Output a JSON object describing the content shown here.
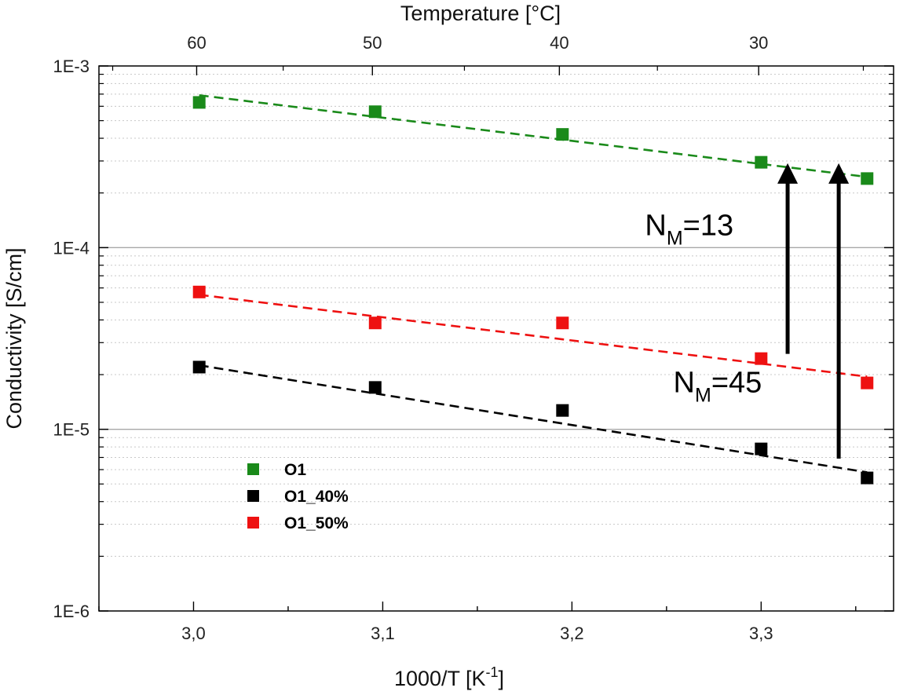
{
  "chart_data": {
    "type": "scatter",
    "xlabel_main": "1000/T [K",
    "xlabel_sup": "-1",
    "xlabel_end": "]",
    "ylabel": "Conductivity [S/cm]",
    "top_axis_label": "Temperature [°C]",
    "xlim": [
      2.95,
      3.37
    ],
    "ylim": [
      1e-06,
      0.001
    ],
    "yscale": "log",
    "x_ticks": [
      3.0,
      3.1,
      3.2,
      3.3
    ],
    "x_tick_labels": [
      "3,0",
      "3,1",
      "3,2",
      "3,3"
    ],
    "y_ticks": [
      1e-06,
      1e-05,
      0.0001,
      0.001
    ],
    "y_tick_labels": [
      "1E-6",
      "1E-5",
      "1E-4",
      "1E-3"
    ],
    "top_ticks": [
      60,
      50,
      40,
      30
    ],
    "top_tick_labels": [
      "60",
      "50",
      "40",
      "30"
    ],
    "grid": true,
    "legend_position": "bottom-left",
    "series": [
      {
        "name": "O1",
        "color": "#1a8a1a",
        "x": [
          3.003,
          3.096,
          3.195,
          3.3,
          3.356
        ],
        "y": [
          0.00063,
          0.00056,
          0.00042,
          0.000295,
          0.00024
        ],
        "fit": [
          [
            3.003,
            0.00069
          ],
          [
            3.356,
            0.000245
          ]
        ]
      },
      {
        "name": "O1_40%",
        "color": "#000000",
        "x": [
          3.003,
          3.096,
          3.195,
          3.3,
          3.356
        ],
        "y": [
          2.2e-05,
          1.7e-05,
          1.27e-05,
          7.8e-06,
          5.4e-06
        ],
        "fit": [
          [
            3.003,
            2.25e-05
          ],
          [
            3.356,
            5.8e-06
          ]
        ]
      },
      {
        "name": "O1_50%",
        "color": "#ee1111",
        "x": [
          3.003,
          3.096,
          3.195,
          3.3,
          3.356
        ],
        "y": [
          5.7e-05,
          3.85e-05,
          3.85e-05,
          2.45e-05,
          1.8e-05
        ],
        "fit": [
          [
            3.003,
            5.5e-05
          ],
          [
            3.356,
            1.95e-05
          ]
        ]
      }
    ],
    "annotations": [
      {
        "main": "N",
        "sub": "M",
        "rest": "=13",
        "arrow_x": 3.314,
        "arrow_from": 2.6e-05,
        "arrow_to": 0.00028,
        "label_x": 3.262,
        "label_y": 0.000117
      },
      {
        "main": "N",
        "sub": "M",
        "rest": "=45",
        "arrow_x": 3.341,
        "arrow_from": 6.9e-06,
        "arrow_to": 0.00028,
        "label_x": 3.277,
        "label_y": 1.6e-05
      }
    ]
  }
}
